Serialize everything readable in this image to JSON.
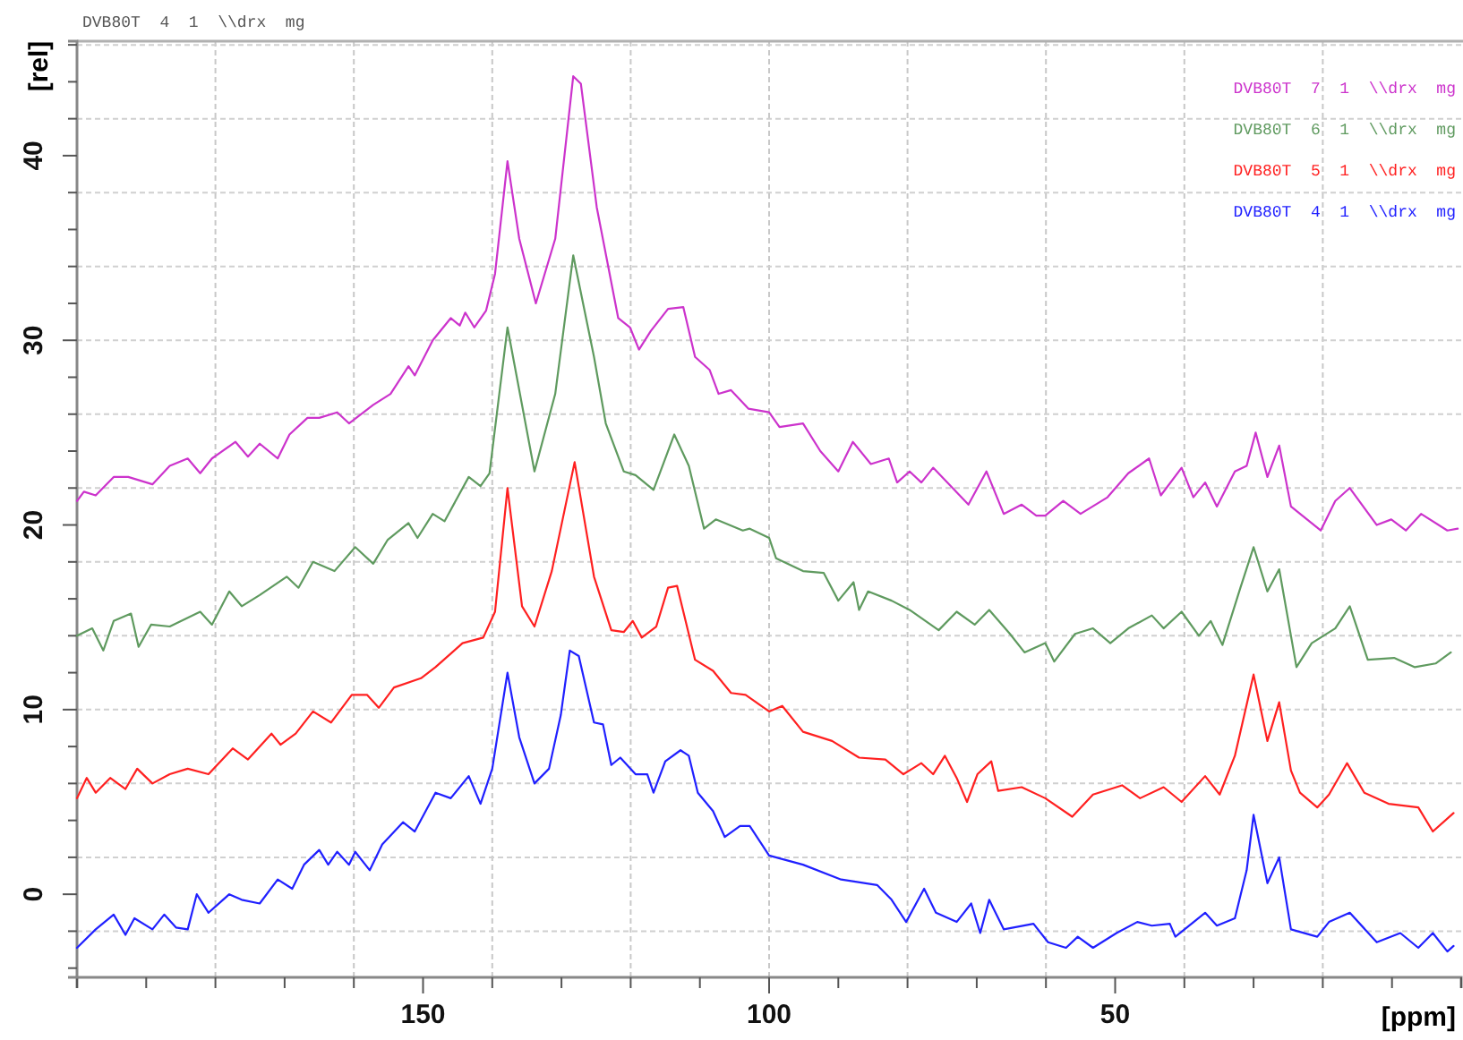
{
  "chart_data": {
    "type": "line",
    "title": "DVB80T  4  1  \\\\drx  mg",
    "xlabel": "[ppm]",
    "ylabel": "[rel]",
    "xlim": [
      200,
      0
    ],
    "ylim": [
      -4.5,
      46.2
    ],
    "xticks": [
      {
        "value": 200,
        "label": null
      },
      {
        "value": 190,
        "label": null
      },
      {
        "value": 180,
        "label": null
      },
      {
        "value": 170,
        "label": null
      },
      {
        "value": 160,
        "label": null
      },
      150,
      {
        "value": 140,
        "label": null
      },
      {
        "value": 130,
        "label": null
      },
      {
        "value": 120,
        "label": null
      },
      {
        "value": 110,
        "label": null
      },
      100,
      {
        "value": 90,
        "label": null
      },
      {
        "value": 80,
        "label": null
      },
      {
        "value": 70,
        "label": null
      },
      {
        "value": 60,
        "label": null
      },
      50,
      {
        "value": 40,
        "label": null
      },
      {
        "value": 30,
        "label": null
      },
      {
        "value": 20,
        "label": null
      },
      {
        "value": 10,
        "label": null
      },
      {
        "value": 0,
        "label": null
      }
    ],
    "yticks": [
      {
        "value": -4,
        "label": null
      },
      {
        "value": -2,
        "label": null
      },
      0,
      {
        "value": 2,
        "label": null
      },
      {
        "value": 4,
        "label": null
      },
      {
        "value": 6,
        "label": null
      },
      {
        "value": 8,
        "label": null
      },
      10,
      {
        "value": 12,
        "label": null
      },
      {
        "value": 14,
        "label": null
      },
      {
        "value": 16,
        "label": null
      },
      {
        "value": 18,
        "label": null
      },
      20,
      {
        "value": 22,
        "label": null
      },
      {
        "value": 24,
        "label": null
      },
      {
        "value": 26,
        "label": null
      },
      {
        "value": 28,
        "label": null
      },
      30,
      {
        "value": 32,
        "label": null
      },
      {
        "value": 34,
        "label": null
      },
      {
        "value": 36,
        "label": null
      },
      {
        "value": 38,
        "label": null
      },
      40,
      {
        "value": 42,
        "label": null
      },
      {
        "value": 44,
        "label": null
      },
      {
        "value": 46,
        "label": null
      }
    ],
    "grid": true,
    "legend": "top right",
    "marker": "none",
    "line_style": "solid",
    "series": [
      {
        "name": "DVB80T  7  1  \\\\drx  mg",
        "color": "#cc33cc",
        "x": [
          200,
          199,
          197.3,
          194.7,
          192.6,
          189.1,
          186.6,
          184,
          182.2,
          180.5,
          177.1,
          175.3,
          173.6,
          171,
          169.3,
          166.7,
          165,
          162.4,
          160.7,
          157.2,
          154.7,
          152.1,
          151.2,
          148.6,
          146,
          144.7,
          143.9,
          142.6,
          140.9,
          139.6,
          137.8,
          136.1,
          133.7,
          130.9,
          128.3,
          127.2,
          124.9,
          121.8,
          120.1,
          118.8,
          117.1,
          114.6,
          112.4,
          110.7,
          108.6,
          107.3,
          105.5,
          103,
          100,
          98.5,
          95.1,
          92.6,
          90,
          87.9,
          85.3,
          82.7,
          81.5,
          79.7,
          78,
          76.3,
          75,
          71.2,
          68.6,
          66.1,
          63.5,
          61.4,
          60.1,
          57.5,
          55,
          51.1,
          48.1,
          45.1,
          43.4,
          40.4,
          38.7,
          37,
          35.3,
          32.7,
          31,
          29.7,
          28,
          26.3,
          24.6,
          20.3,
          18.2,
          16.1,
          12.2,
          10.1,
          8,
          5.8,
          2,
          0.5
        ],
        "values": [
          21.3,
          21.8,
          21.6,
          22.6,
          22.6,
          22.2,
          23.2,
          23.6,
          22.8,
          23.6,
          24.5,
          23.7,
          24.4,
          23.6,
          24.9,
          25.8,
          25.8,
          26.1,
          25.5,
          26.5,
          27.1,
          28.6,
          28.1,
          30,
          31.2,
          30.8,
          31.5,
          30.7,
          31.6,
          33.6,
          39.7,
          35.5,
          32,
          35.5,
          44.3,
          43.9,
          37.2,
          31.2,
          30.7,
          29.5,
          30.5,
          31.7,
          31.8,
          29.1,
          28.4,
          27.1,
          27.3,
          26.3,
          26.1,
          25.3,
          25.5,
          24,
          22.9,
          24.5,
          23.3,
          23.6,
          22.3,
          22.9,
          22.3,
          23.1,
          22.6,
          21.1,
          22.9,
          20.6,
          21.1,
          20.5,
          20.5,
          21.3,
          20.6,
          21.5,
          22.8,
          23.6,
          21.6,
          23.1,
          21.5,
          22.3,
          21,
          22.9,
          23.2,
          25,
          22.6,
          24.3,
          21,
          19.7,
          21.3,
          22,
          20,
          20.3,
          19.7,
          20.6,
          19.7,
          19.8
        ]
      },
      {
        "name": "DVB80T  6  1  \\\\drx  mg",
        "color": "#5f9a5f",
        "x": [
          200,
          197.8,
          196.2,
          194.7,
          192.2,
          191.1,
          189.3,
          186.6,
          182.2,
          180.5,
          178,
          176.2,
          173.6,
          169.7,
          168,
          165.9,
          162.8,
          159.8,
          157.2,
          155.1,
          152.1,
          150.8,
          148.6,
          146.9,
          143.4,
          141.7,
          140.4,
          137.8,
          133.9,
          130.9,
          128.3,
          125.3,
          123.6,
          121,
          119.3,
          116.7,
          113.7,
          111.6,
          109.4,
          107.7,
          103.8,
          102.8,
          100,
          99,
          95.1,
          92.1,
          90,
          87.8,
          87,
          85.7,
          82.3,
          79.7,
          75.5,
          72.9,
          70.3,
          68.2,
          65.2,
          63.1,
          60.1,
          58.8,
          55.8,
          53.2,
          50.7,
          48.1,
          44.7,
          43,
          40.4,
          37.9,
          36.2,
          34.5,
          31.9,
          30,
          28,
          26.3,
          23.8,
          21.6,
          18.2,
          16.1,
          13.5,
          9.7,
          6.7,
          3.7,
          1.5
        ],
        "values": [
          14,
          14.4,
          13.2,
          14.8,
          15.2,
          13.4,
          14.6,
          14.5,
          15.3,
          14.6,
          16.4,
          15.6,
          16.2,
          17.2,
          16.6,
          18,
          17.5,
          18.8,
          17.9,
          19.2,
          20.1,
          19.3,
          20.6,
          20.2,
          22.6,
          22.1,
          22.8,
          30.7,
          22.9,
          27.1,
          34.6,
          29.1,
          25.5,
          22.9,
          22.7,
          21.9,
          24.9,
          23.2,
          19.8,
          20.3,
          19.7,
          19.8,
          19.3,
          18.2,
          17.5,
          17.4,
          15.9,
          16.9,
          15.4,
          16.4,
          15.9,
          15.4,
          14.3,
          15.3,
          14.6,
          15.4,
          14.1,
          13.1,
          13.6,
          12.6,
          14.1,
          14.4,
          13.6,
          14.4,
          15.1,
          14.4,
          15.3,
          14,
          14.8,
          13.5,
          16.6,
          18.8,
          16.4,
          17.6,
          12.3,
          13.6,
          14.4,
          15.6,
          12.7,
          12.8,
          12.3,
          12.5,
          13.1
        ]
      },
      {
        "name": "DVB80T  5  1  \\\\drx  mg",
        "color": "#ff2020",
        "x": [
          200,
          198.6,
          197.3,
          195.2,
          193,
          191.3,
          189.1,
          186.6,
          184,
          181,
          177.5,
          175.3,
          171.9,
          170.6,
          168.4,
          165.9,
          163.3,
          160.3,
          158.1,
          156.4,
          154.2,
          150.3,
          148.2,
          144.3,
          141.3,
          139.6,
          137.8,
          135.7,
          133.9,
          131.4,
          128.1,
          125.3,
          122.8,
          121,
          119.7,
          118.4,
          116.3,
          114.6,
          113.3,
          110.7,
          108.1,
          105.5,
          103.4,
          100,
          98.1,
          95.1,
          90.9,
          87,
          83.2,
          80.6,
          78,
          76.3,
          74.6,
          72.9,
          71.4,
          69.9,
          67.9,
          66.9,
          63.5,
          60.1,
          56.2,
          53.2,
          49,
          46.4,
          43,
          40.4,
          37,
          34.9,
          32.7,
          30,
          28,
          26.3,
          24.6,
          23.3,
          20.8,
          19.1,
          16.5,
          14,
          10.5,
          6.2,
          4.1,
          1.1
        ],
        "values": [
          5.2,
          6.3,
          5.5,
          6.3,
          5.7,
          6.8,
          6,
          6.5,
          6.8,
          6.5,
          7.9,
          7.3,
          8.7,
          8.1,
          8.7,
          9.9,
          9.3,
          10.8,
          10.8,
          10.1,
          11.2,
          11.7,
          12.3,
          13.6,
          13.9,
          15.3,
          22,
          15.6,
          14.5,
          17.5,
          23.4,
          17.2,
          14.3,
          14.2,
          14.8,
          13.9,
          14.5,
          16.6,
          16.7,
          12.7,
          12.1,
          10.9,
          10.8,
          9.9,
          10.2,
          8.8,
          8.3,
          7.4,
          7.3,
          6.5,
          7.1,
          6.5,
          7.5,
          6.3,
          5,
          6.5,
          7.2,
          5.6,
          5.8,
          5.2,
          4.2,
          5.4,
          5.9,
          5.2,
          5.8,
          5,
          6.4,
          5.4,
          7.5,
          11.9,
          8.3,
          10.4,
          6.7,
          5.5,
          4.7,
          5.4,
          7.1,
          5.5,
          4.9,
          4.7,
          3.4,
          4.4
        ]
      },
      {
        "name": "DVB80T  4  1  \\\\drx  mg",
        "color": "#2020ff",
        "x": [
          200,
          197.3,
          194.7,
          193,
          191.7,
          189.1,
          187.4,
          185.7,
          184,
          182.7,
          181,
          178,
          176.2,
          173.6,
          171,
          168.9,
          167.2,
          165,
          163.7,
          162.4,
          160.7,
          159.8,
          157.7,
          155.9,
          152.9,
          151.2,
          148.2,
          146,
          143.4,
          141.7,
          140,
          137.8,
          136.1,
          133.9,
          131.8,
          130.1,
          128.8,
          127.5,
          125.3,
          124,
          122.8,
          121.5,
          119.3,
          117.6,
          116.7,
          115,
          112.8,
          111.6,
          110.3,
          108.1,
          106.4,
          104.2,
          102.8,
          100,
          95.1,
          89.6,
          84.4,
          82.3,
          80.2,
          77.6,
          75.9,
          72.9,
          70.8,
          69.5,
          68.2,
          66.1,
          61.8,
          59.7,
          57.1,
          55.4,
          53.2,
          49.8,
          46.8,
          44.7,
          42.1,
          41.3,
          37,
          35.3,
          32.7,
          31,
          30,
          28,
          26.3,
          24.6,
          20.8,
          19.1,
          16.1,
          12.2,
          8.8,
          6.2,
          4.1,
          2,
          1.1
        ],
        "values": [
          -2.9,
          -1.9,
          -1.1,
          -2.2,
          -1.3,
          -1.9,
          -1.1,
          -1.8,
          -1.9,
          0,
          -1,
          0,
          -0.3,
          -0.5,
          0.8,
          0.3,
          1.6,
          2.4,
          1.6,
          2.3,
          1.6,
          2.3,
          1.3,
          2.7,
          3.9,
          3.4,
          5.5,
          5.2,
          6.4,
          4.9,
          6.8,
          12,
          8.5,
          6,
          6.8,
          9.7,
          13.2,
          12.9,
          9.3,
          9.2,
          7,
          7.4,
          6.5,
          6.5,
          5.5,
          7.2,
          7.8,
          7.5,
          5.5,
          4.5,
          3.1,
          3.7,
          3.7,
          2.1,
          1.6,
          0.8,
          0.5,
          -0.3,
          -1.5,
          0.3,
          -1,
          -1.5,
          -0.5,
          -2.1,
          -0.3,
          -1.9,
          -1.6,
          -2.6,
          -2.9,
          -2.3,
          -2.9,
          -2.1,
          -1.5,
          -1.7,
          -1.6,
          -2.3,
          -1,
          -1.7,
          -1.3,
          1.3,
          4.3,
          0.6,
          2,
          -1.9,
          -2.3,
          -1.5,
          -1,
          -2.6,
          -2.1,
          -2.9,
          -2.1,
          -3.1,
          -2.8
        ]
      }
    ]
  }
}
